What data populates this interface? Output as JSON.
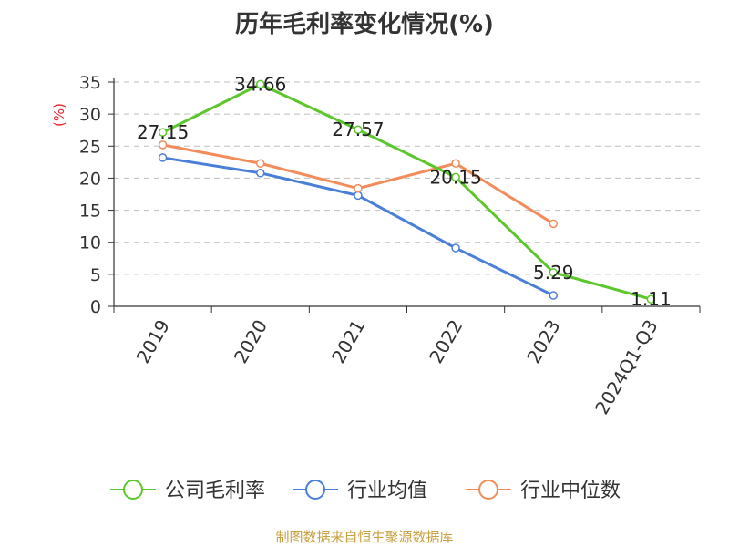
{
  "chart_data": {
    "type": "line",
    "title": "历年毛利率变化情况(%)",
    "ylabel": "(%)",
    "xlabel": "",
    "categories": [
      "2019",
      "2020",
      "2021",
      "2022",
      "2023",
      "2024Q1-Q3"
    ],
    "ylim": [
      0,
      35
    ],
    "yticks": [
      0,
      5,
      10,
      15,
      20,
      25,
      30,
      35
    ],
    "grid": true,
    "legend_position": "bottom",
    "series": [
      {
        "name": "公司毛利率",
        "color": "#5bc72a",
        "values": [
          27.15,
          34.66,
          27.57,
          20.15,
          5.29,
          1.11
        ],
        "labels": [
          "27.15",
          "34.66",
          "27.57",
          "20.15",
          "5.29",
          "1.11"
        ]
      },
      {
        "name": "行业均值",
        "color": "#4a7fd8",
        "values": [
          23.2,
          20.8,
          17.3,
          9.1,
          1.7,
          null
        ]
      },
      {
        "name": "行业中位数",
        "color": "#f28c5a",
        "values": [
          25.2,
          22.3,
          18.4,
          22.3,
          12.9,
          null
        ]
      }
    ]
  },
  "source_note": "制图数据来自恒生聚源数据库"
}
